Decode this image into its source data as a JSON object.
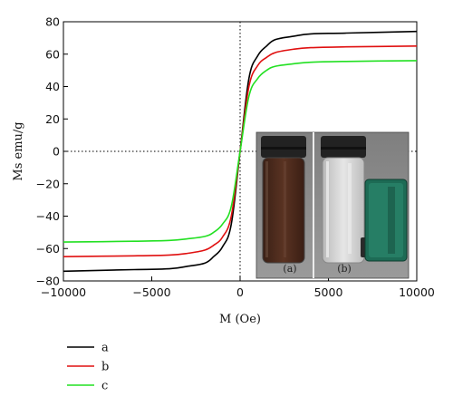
{
  "chart_data": {
    "type": "line",
    "xlabel": "M (Oe)",
    "ylabel": "Ms emu/g",
    "xlim": [
      -10000,
      10000
    ],
    "ylim": [
      -80,
      80
    ],
    "xticks": [
      -10000,
      -5000,
      0,
      5000,
      10000
    ],
    "xtick_labels": [
      "−10000",
      "−5000",
      "0",
      "5000",
      "10000"
    ],
    "yticks": [
      80,
      60,
      40,
      20,
      0,
      -20,
      -40,
      -60,
      -80
    ],
    "ytick_labels": [
      "80",
      "60",
      "40",
      "20",
      "0",
      "−20",
      "−40",
      "−60",
      "−80"
    ],
    "grid": false,
    "zero_lines": true,
    "legend_position": "below-left",
    "series": [
      {
        "name": "a",
        "color": "#000000",
        "x": [
          -10000,
          -6000,
          -4000,
          -3000,
          -2000,
          -1500,
          -1000,
          -500,
          0,
          500,
          1000,
          1500,
          2000,
          3000,
          4000,
          6000,
          10000
        ],
        "y": [
          -74,
          -73,
          -72.5,
          -71,
          -69,
          -65,
          -59,
          -45,
          0,
          45,
          59,
          65,
          69,
          71,
          72.5,
          73,
          74
        ]
      },
      {
        "name": "b",
        "color": "#e01010",
        "x": [
          -10000,
          -6000,
          -4000,
          -3000,
          -2000,
          -1500,
          -1000,
          -500,
          0,
          500,
          1000,
          1500,
          2000,
          3000,
          4000,
          6000,
          10000
        ],
        "y": [
          -65,
          -64.5,
          -64,
          -63,
          -61,
          -58,
          -53,
          -40,
          0,
          40,
          53,
          58,
          61,
          63,
          64,
          64.5,
          65
        ]
      },
      {
        "name": "c",
        "color": "#22e022",
        "x": [
          -10000,
          -6000,
          -4000,
          -3000,
          -2000,
          -1500,
          -1000,
          -500,
          0,
          500,
          1000,
          1500,
          2000,
          3000,
          4000,
          6000,
          10000
        ],
        "y": [
          -56,
          -55.5,
          -55,
          -54,
          -52.5,
          -50,
          -45,
          -34,
          0,
          34,
          45,
          50,
          52.5,
          54,
          55,
          55.5,
          56
        ]
      }
    ],
    "inset": {
      "captions": [
        "(a)",
        "(b)"
      ]
    }
  }
}
